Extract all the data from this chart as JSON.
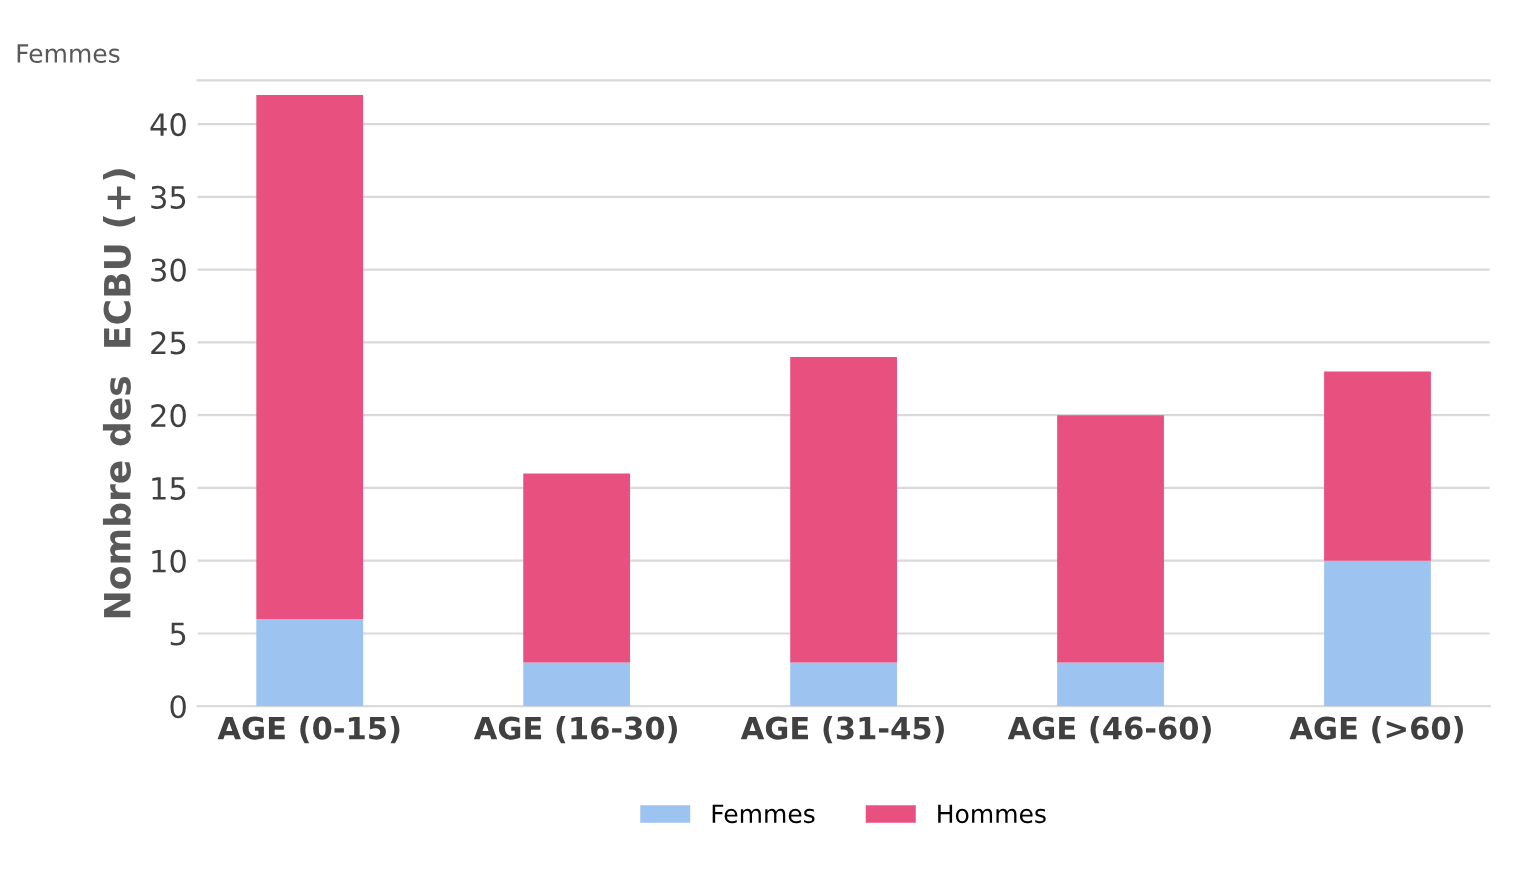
{
  "chart_data": {
    "type": "bar",
    "stacked": true,
    "ylabel": "Nombre des  ECBU (+)",
    "annotations": [
      "Femmes"
    ],
    "categories": [
      "AGE (0-15)",
      "AGE (16-30)",
      "AGE (31-45)",
      "AGE (46-60)",
      "AGE (>60)"
    ],
    "series": [
      {
        "name": "Femmes",
        "color": "#9dc3f0",
        "values": [
          6,
          3,
          3,
          3,
          10
        ]
      },
      {
        "name": "Hommes",
        "color": "#e8507f",
        "values": [
          36,
          13,
          21,
          17,
          13
        ]
      }
    ],
    "ylim": [
      0,
      43
    ],
    "yticks": [
      0,
      5,
      10,
      15,
      20,
      25,
      30,
      35,
      40
    ],
    "grid": "y",
    "legend": "bottom"
  }
}
